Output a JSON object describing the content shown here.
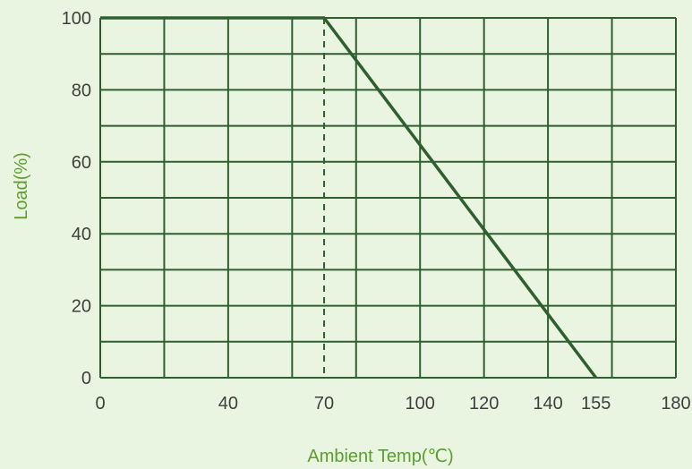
{
  "chart_data": {
    "type": "line",
    "title": "",
    "xlabel": "Ambient Temp(℃)",
    "ylabel": "Load(%)",
    "xlim": [
      0,
      180
    ],
    "ylim": [
      0,
      100
    ],
    "x_ticks": [
      0,
      40,
      70,
      100,
      120,
      140,
      155,
      180
    ],
    "y_ticks": [
      0,
      20,
      40,
      60,
      80,
      100
    ],
    "x_gridlines": [
      0,
      20,
      40,
      60,
      80,
      100,
      120,
      140,
      160,
      180
    ],
    "y_gridlines": [
      0,
      10,
      20,
      30,
      40,
      50,
      60,
      70,
      80,
      90,
      100
    ],
    "grid": true,
    "series": [
      {
        "x": [
          0,
          70,
          155
        ],
        "y": [
          100,
          100,
          0
        ]
      }
    ],
    "reference_lines": [
      {
        "orientation": "vertical",
        "x": 70,
        "style": "dashed"
      }
    ],
    "colors": {
      "background": "#e9f4e1",
      "grid": "#2f5f2f",
      "line": "#2f5f2f",
      "tick_text": "#3f3f3f",
      "axis_title": "#5aa02c"
    }
  }
}
